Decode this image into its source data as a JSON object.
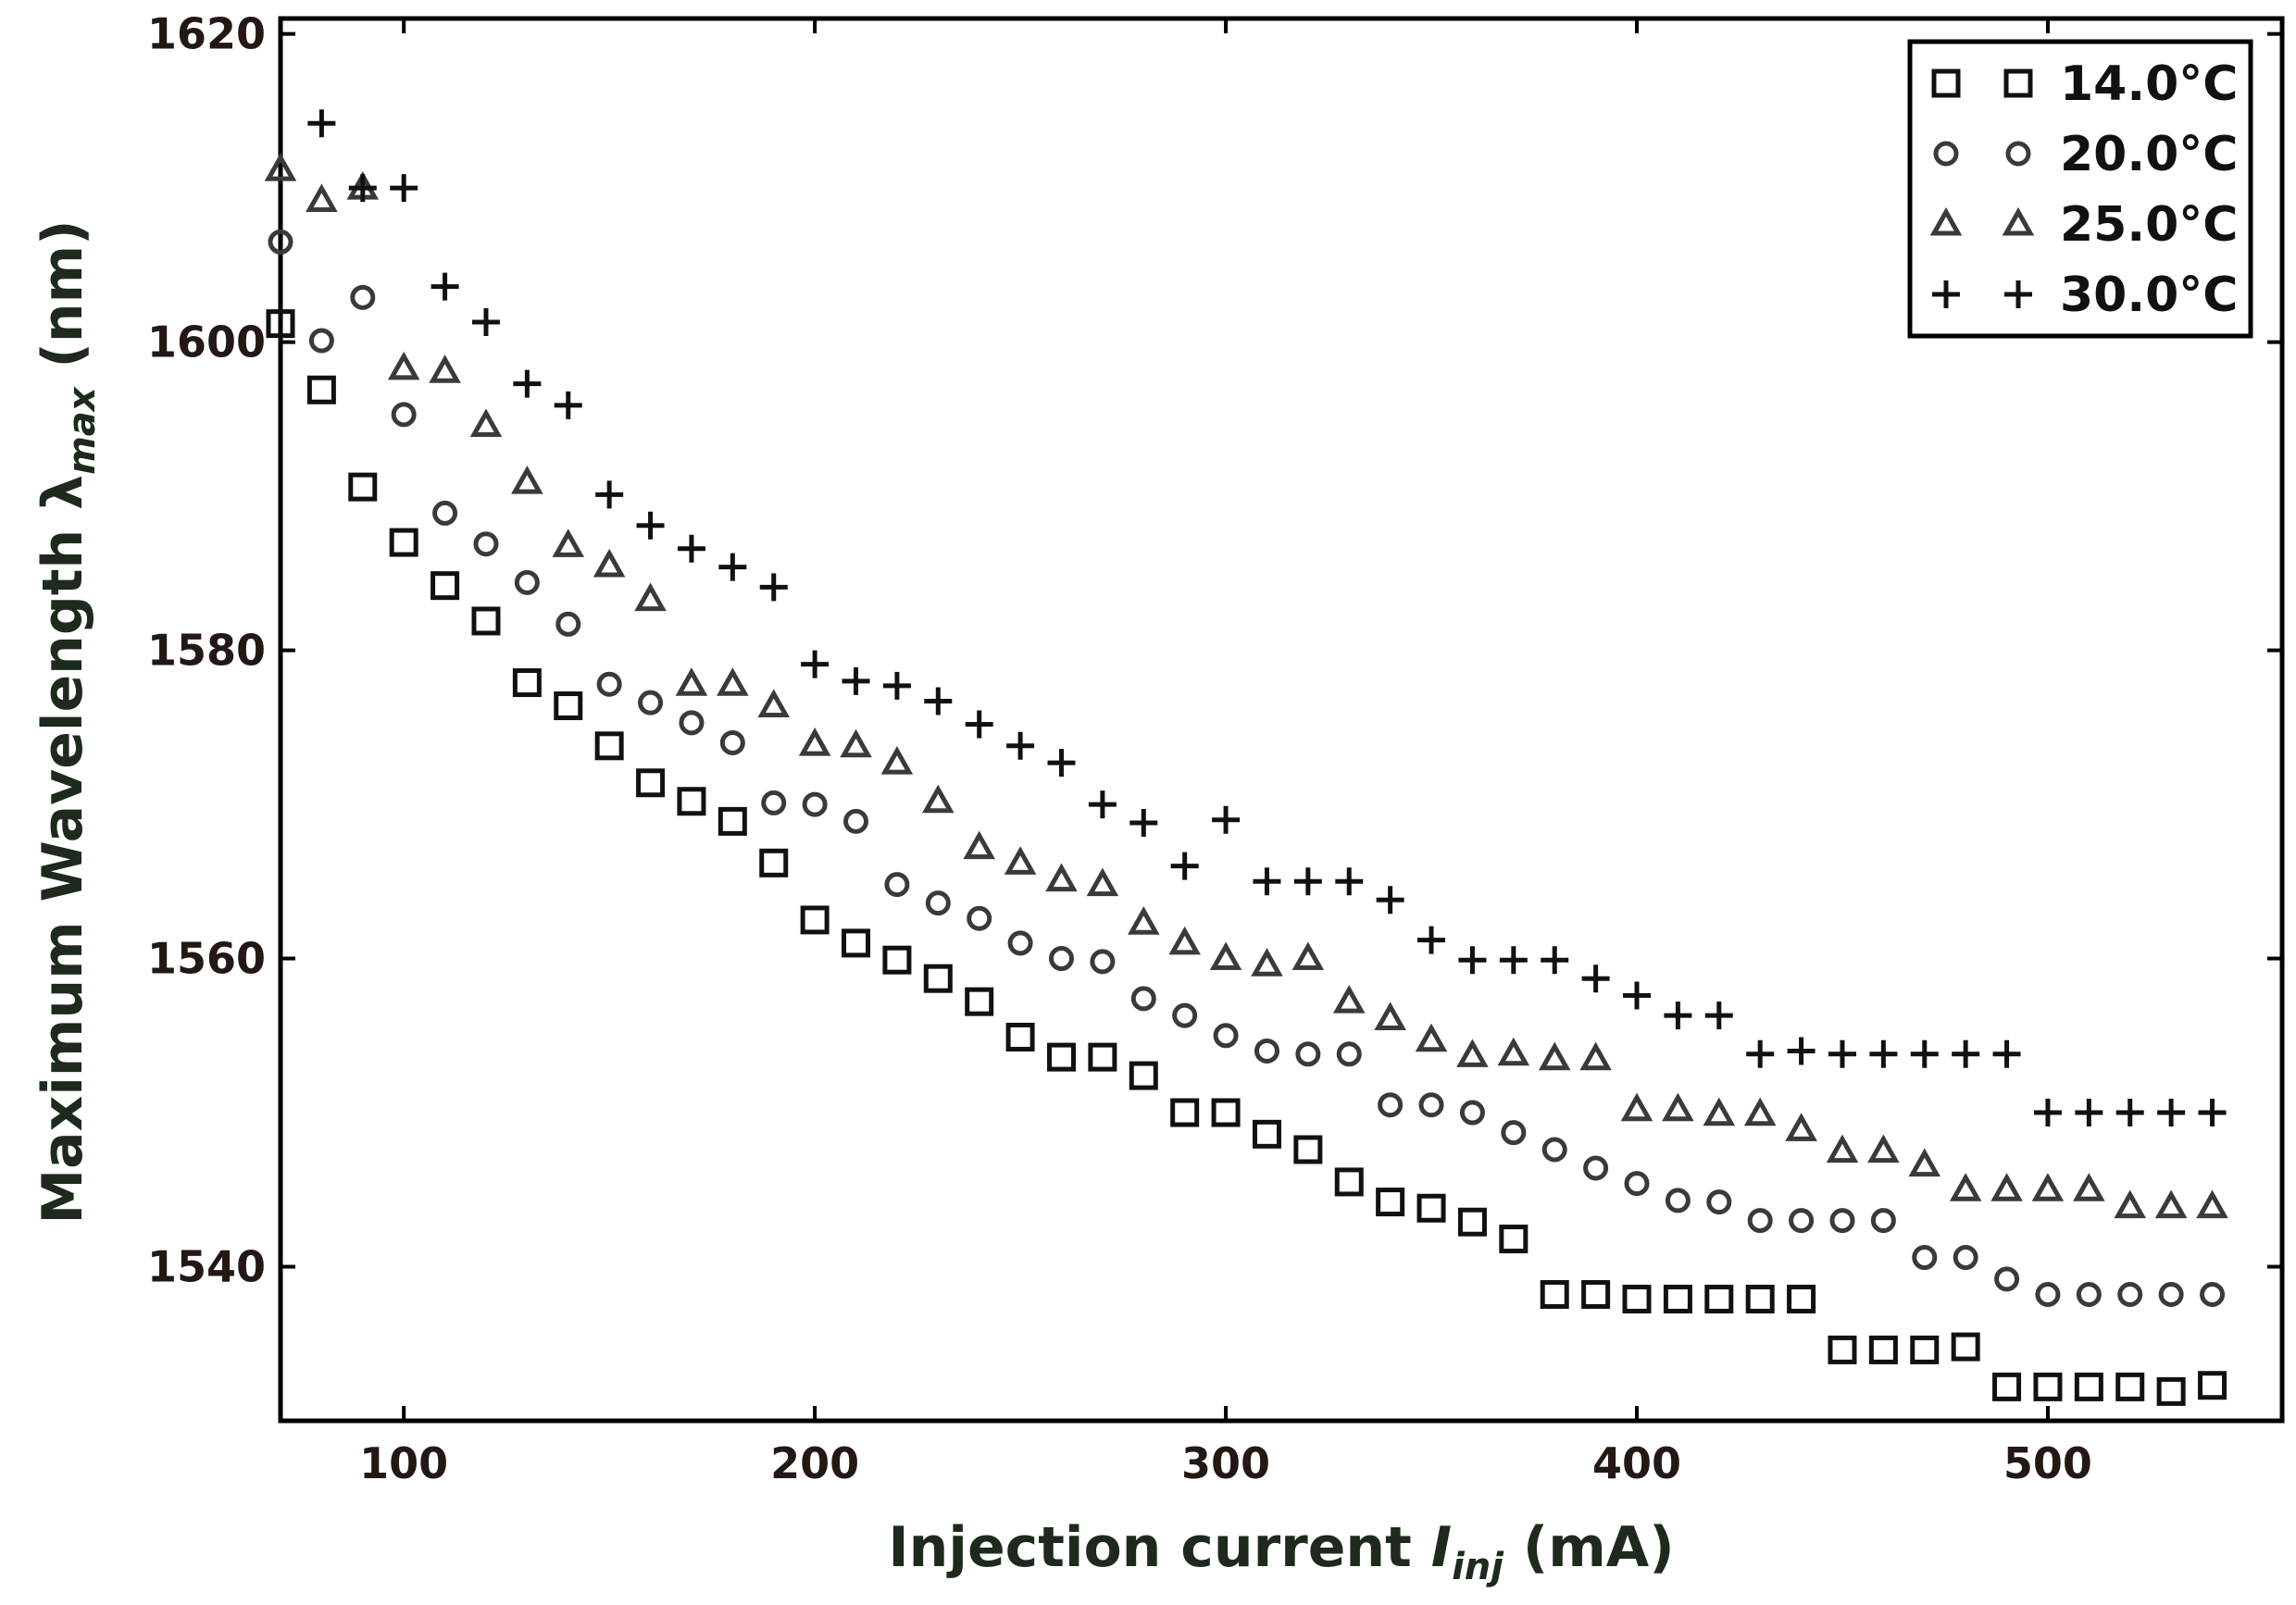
{
  "chart_data": {
    "type": "scatter",
    "title": "",
    "xlabel": {
      "main": "Injection current ",
      "symbol": "I",
      "subscript": "inj",
      "unit": " (mA)"
    },
    "ylabel": {
      "main": "Maximum Wavelength ",
      "symbol": "λ",
      "subscript": "max",
      "unit": " (nm)"
    },
    "xlim": [
      70,
      557
    ],
    "ylim": [
      1530,
      1621
    ],
    "xticks": [
      100,
      200,
      300,
      400,
      500
    ],
    "yticks": [
      1540,
      1560,
      1580,
      1600,
      1620
    ],
    "legend_position": "top-right",
    "x": [
      70,
      80,
      90,
      100,
      110,
      120,
      130,
      140,
      150,
      160,
      170,
      180,
      190,
      200,
      210,
      220,
      230,
      240,
      250,
      260,
      270,
      280,
      290,
      300,
      310,
      320,
      330,
      340,
      350,
      360,
      370,
      380,
      390,
      400,
      410,
      420,
      430,
      440,
      450,
      460,
      470,
      480,
      490,
      500,
      510,
      520,
      530,
      540
    ],
    "series": [
      {
        "name": "14.0°C",
        "marker": "square",
        "values": [
          1601.2,
          1596.9,
          1590.6,
          1587.0,
          1584.2,
          1581.9,
          1577.9,
          1576.4,
          1573.8,
          1571.4,
          1570.2,
          1568.9,
          1566.2,
          1562.5,
          1561.0,
          1559.9,
          1558.7,
          1557.2,
          1554.9,
          1553.6,
          1553.6,
          1552.4,
          1550.0,
          1550.0,
          1548.6,
          1547.6,
          1545.5,
          1544.2,
          1543.8,
          1542.9,
          1541.8,
          1538.2,
          1538.2,
          1537.9,
          1537.9,
          1537.9,
          1537.9,
          1537.9,
          1534.6,
          1534.6,
          1534.6,
          1534.8,
          1532.2,
          1532.2,
          1532.2,
          1532.2,
          1531.9,
          1532.3
        ]
      },
      {
        "name": "20.0°C",
        "marker": "circle",
        "values": [
          1606.5,
          1600.1,
          1602.9,
          1595.3,
          1588.9,
          1586.9,
          1584.4,
          1581.7,
          1577.8,
          1576.6,
          1575.3,
          1574.0,
          1570.1,
          1570.0,
          1568.9,
          1564.8,
          1563.6,
          1562.6,
          1561.0,
          1560.0,
          1559.8,
          1557.4,
          1556.3,
          1555.0,
          1554.0,
          1553.8,
          1553.8,
          1550.5,
          1550.5,
          1550.0,
          1548.7,
          1547.6,
          1546.4,
          1545.4,
          1544.3,
          1544.2,
          1543.0,
          1543.0,
          1543.0,
          1543.0,
          1540.6,
          1540.6,
          1539.2,
          1538.2,
          1538.2,
          1538.2,
          1538.2,
          1538.2
        ]
      },
      {
        "name": "25.0°C",
        "marker": "triangle",
        "values": [
          1611.2,
          1609.2,
          1610.0,
          1598.3,
          1598.1,
          1594.6,
          1590.9,
          1586.8,
          1585.5,
          1583.3,
          1577.8,
          1577.8,
          1576.4,
          1573.9,
          1573.8,
          1572.7,
          1570.2,
          1567.2,
          1566.2,
          1565.1,
          1564.8,
          1562.3,
          1561.0,
          1560.0,
          1559.6,
          1560.0,
          1557.2,
          1556.1,
          1554.7,
          1553.7,
          1553.8,
          1553.5,
          1553.5,
          1550.2,
          1550.2,
          1549.9,
          1549.9,
          1548.9,
          1547.5,
          1547.5,
          1546.6,
          1545.0,
          1545.0,
          1545.0,
          1545.0,
          1543.9,
          1543.9,
          1543.9
        ]
      },
      {
        "name": "30.0°C",
        "marker": "plus",
        "values": [
          null,
          1614.2,
          1610.0,
          1610.0,
          1603.6,
          1601.3,
          1597.3,
          1595.9,
          1590.1,
          1588.1,
          1586.6,
          1585.4,
          1584.1,
          1579.1,
          1578.0,
          1577.7,
          1576.7,
          1575.2,
          1573.8,
          1572.7,
          1570.0,
          1568.8,
          1566.0,
          1569.0,
          1565.0,
          1565.0,
          1565.0,
          1563.8,
          1561.2,
          1559.9,
          1559.9,
          1559.9,
          1558.7,
          1557.6,
          1556.3,
          1556.3,
          1553.8,
          1554.0,
          1553.8,
          1553.8,
          1553.8,
          1553.8,
          1553.8,
          1550.0,
          1550.0,
          1550.0,
          1550.0,
          1550.0
        ]
      }
    ]
  }
}
